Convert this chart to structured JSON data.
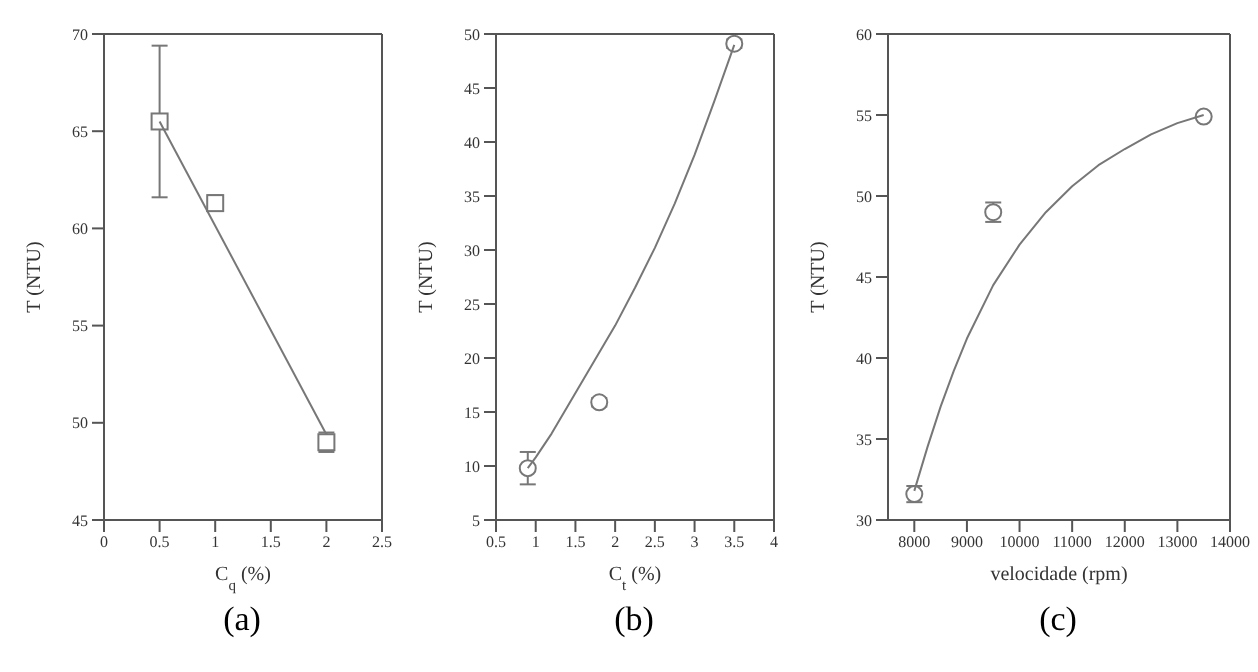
{
  "chart_data": [
    {
      "type": "scatter",
      "xlabel": "C$_{q}$ (%)",
      "ylabel": "T (NTU)",
      "annotations": [
        "(a)"
      ],
      "xlim": [
        0,
        2.5
      ],
      "xticks": [
        0,
        0.5,
        1,
        1.5,
        2,
        2.5
      ],
      "ylim": [
        45,
        70
      ],
      "yticks": [
        45,
        50,
        55,
        60,
        65,
        70
      ],
      "series": [
        {
          "color": "#777777",
          "marker": "square",
          "x": [
            0.5,
            1,
            2
          ],
          "values": [
            65.5,
            61.3,
            49.0
          ],
          "errors": [
            [
              61.6,
              69.4
            ],
            0.4,
            0.5
          ]
        },
        {
          "type": "line",
          "color": "#777777",
          "x": [
            0.5,
            2
          ],
          "values": [
            65.5,
            49.4
          ]
        }
      ]
    },
    {
      "type": "scatter",
      "xlabel": "C$_{t}$ (%)",
      "ylabel": "T (NTU)",
      "annotations": [
        "(b)"
      ],
      "xlim": [
        0.5,
        4
      ],
      "xticks": [
        0.5,
        1,
        1.5,
        2,
        2.5,
        3,
        3.5,
        4
      ],
      "ylim": [
        5,
        50
      ],
      "yticks": [
        5,
        10,
        15,
        20,
        25,
        30,
        35,
        40,
        45,
        50
      ],
      "series": [
        {
          "color": "#777777",
          "marker": "circle",
          "x": [
            0.9,
            1.8,
            3.5
          ],
          "values": [
            9.8,
            15.9,
            49.1
          ],
          "errors": [
            [
              8.3,
              11.3
            ],
            0.4,
            0.4
          ]
        },
        {
          "type": "line",
          "color": "#777777",
          "x": [
            0.9,
            1.0,
            1.2,
            1.4,
            1.6,
            1.8,
            2.0,
            2.25,
            2.5,
            2.75,
            3.0,
            3.25,
            3.5
          ],
          "values": [
            9.8,
            10.8,
            13,
            15.5,
            18,
            20.5,
            23,
            26.5,
            30.2,
            34.3,
            38.8,
            43.8,
            49
          ]
        }
      ]
    },
    {
      "type": "scatter",
      "xlabel": "velocidade (rpm)",
      "ylabel": "T (NTU)",
      "annotations": [
        "(c)"
      ],
      "xlim": [
        7500,
        14000
      ],
      "xticks": [
        8000,
        9000,
        10000,
        11000,
        12000,
        13000,
        14000
      ],
      "ylim": [
        30,
        60
      ],
      "yticks": [
        30,
        35,
        40,
        45,
        50,
        55,
        60
      ],
      "series": [
        {
          "color": "#777777",
          "marker": "circle",
          "x": [
            8000,
            9500,
            13500
          ],
          "values": [
            31.6,
            49.0,
            54.9
          ],
          "errors": [
            0.5,
            0.6,
            null
          ]
        },
        {
          "type": "line",
          "color": "#777777",
          "x": [
            8000,
            8250,
            8500,
            8750,
            9000,
            9500,
            10000,
            10500,
            11000,
            11500,
            12000,
            12500,
            13000,
            13500
          ],
          "values": [
            31.8,
            34.5,
            37,
            39.2,
            41.2,
            44.5,
            47,
            49,
            50.6,
            51.9,
            52.9,
            53.8,
            54.5,
            55
          ]
        }
      ]
    }
  ]
}
